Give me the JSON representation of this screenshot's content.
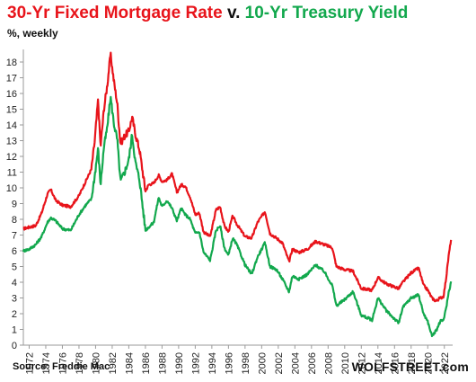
{
  "title": {
    "part1": "30-Yr Fixed Mortgage Rate",
    "part2": " v. ",
    "part3": "10-Yr Treasury Yield"
  },
  "subtitle": "%, weekly",
  "source": "Source: Freddie Mac",
  "brand": "WOLFSTREET.com",
  "colors": {
    "mortgage": "#e8141b",
    "treasury": "#12a84d",
    "axis": "#9a9a9a",
    "grid": "#d9d9d9"
  },
  "chart_data": {
    "type": "line",
    "title": "30-Yr Fixed Mortgage Rate v. 10-Yr Treasury Yield",
    "ylabel": "%, weekly",
    "xlim": [
      1971.3,
      2023.0
    ],
    "ylim": [
      0,
      18.8
    ],
    "y_ticks": [
      0,
      1,
      2,
      3,
      4,
      5,
      6,
      7,
      8,
      9,
      10,
      11,
      12,
      13,
      14,
      15,
      16,
      17,
      18
    ],
    "x_ticks": [
      1972,
      1974,
      1976,
      1978,
      1980,
      1982,
      1984,
      1986,
      1988,
      1990,
      1992,
      1994,
      1996,
      1998,
      2000,
      2002,
      2004,
      2006,
      2008,
      2010,
      2012,
      2014,
      2016,
      2018,
      2020,
      2022
    ],
    "grid": false,
    "series": [
      {
        "name": "30-Yr Fixed Mortgage Rate",
        "color": "#e8141b",
        "x": [
          1971.3,
          1972,
          1972.8,
          1973.5,
          1974.2,
          1974.6,
          1975.2,
          1976,
          1977,
          1978,
          1978.8,
          1979.5,
          1979.9,
          1980.3,
          1980.6,
          1981,
          1981.4,
          1981.8,
          1982.2,
          1982.6,
          1983,
          1983.5,
          1984,
          1984.4,
          1984.8,
          1985.3,
          1986,
          1986.4,
          1987,
          1987.6,
          1988,
          1988.6,
          1989.2,
          1989.8,
          1990.3,
          1990.8,
          1991.4,
          1992,
          1992.5,
          1993,
          1993.8,
          1994.5,
          1995,
          1995.5,
          1996,
          1996.5,
          1997,
          1998,
          1998.8,
          1999.5,
          2000.4,
          2001,
          2001.8,
          2002.5,
          2003.3,
          2003.7,
          2004.5,
          2005.5,
          2006.5,
          2007.5,
          2008.5,
          2009,
          2010,
          2011,
          2012,
          2013.3,
          2014,
          2015,
          2016.5,
          2017,
          2018,
          2018.9,
          2019.5,
          2020,
          2020.5,
          2021,
          2021.5,
          2021.9,
          2022.2,
          2022.5,
          2022.8
        ],
        "values": [
          7.4,
          7.5,
          7.6,
          8.4,
          9.6,
          9.9,
          9.2,
          8.9,
          8.8,
          9.5,
          10.4,
          11.2,
          13,
          15.6,
          12.6,
          15,
          16.5,
          18.5,
          16.8,
          15.4,
          12.8,
          13.3,
          13.6,
          14.5,
          13.4,
          12.4,
          9.8,
          10.2,
          10.3,
          10.8,
          10.4,
          10.5,
          10.9,
          9.7,
          10.2,
          10.1,
          9.4,
          8.3,
          8.4,
          7.2,
          6.9,
          8.6,
          8.8,
          7.6,
          7.2,
          8.2,
          7.7,
          6.9,
          6.8,
          7.8,
          8.5,
          7.1,
          6.8,
          6.5,
          5.3,
          6.1,
          5.9,
          6.1,
          6.6,
          6.4,
          6.2,
          5,
          4.8,
          4.7,
          3.6,
          3.5,
          4.3,
          3.9,
          3.6,
          4,
          4.6,
          4.9,
          3.8,
          3.5,
          3,
          2.8,
          3,
          3.1,
          4.2,
          5.6,
          6.7
        ]
      },
      {
        "name": "10-Yr Treasury Yield",
        "color": "#12a84d",
        "x": [
          1971.3,
          1972,
          1972.8,
          1973.5,
          1974.2,
          1974.6,
          1975.2,
          1976,
          1977,
          1978,
          1978.8,
          1979.5,
          1979.9,
          1980.3,
          1980.6,
          1981,
          1981.4,
          1981.8,
          1982.2,
          1982.6,
          1983,
          1983.5,
          1984,
          1984.4,
          1984.8,
          1985.3,
          1986,
          1986.4,
          1987,
          1987.6,
          1988,
          1988.6,
          1989.2,
          1989.8,
          1990.3,
          1990.8,
          1991.4,
          1992,
          1992.5,
          1993,
          1993.8,
          1994.5,
          1995,
          1995.5,
          1996,
          1996.5,
          1997,
          1998,
          1998.8,
          1999.5,
          2000.4,
          2001,
          2001.8,
          2002.5,
          2003.3,
          2003.7,
          2004.5,
          2005.5,
          2006.5,
          2007.5,
          2008.5,
          2009,
          2010,
          2011,
          2012,
          2013.3,
          2014,
          2015,
          2016.5,
          2017,
          2018,
          2018.9,
          2019.5,
          2020,
          2020.5,
          2021,
          2021.5,
          2021.9,
          2022.2,
          2022.5,
          2022.8
        ],
        "values": [
          6,
          6.1,
          6.4,
          6.9,
          7.8,
          8.1,
          7.9,
          7.4,
          7.3,
          8.3,
          8.9,
          9.3,
          10.8,
          12.5,
          10.2,
          12.6,
          13.8,
          15.8,
          14.1,
          13.1,
          10.4,
          11,
          11.8,
          13.4,
          11.6,
          10.5,
          7.3,
          7.5,
          7.8,
          9.4,
          8.8,
          9.2,
          8.7,
          7.9,
          8.7,
          8.3,
          8,
          7.1,
          7.2,
          5.9,
          5.4,
          7.3,
          7.6,
          6.2,
          5.7,
          6.8,
          6.4,
          5.1,
          4.5,
          5.6,
          6.5,
          5,
          4.8,
          4.2,
          3.4,
          4.4,
          4.2,
          4.5,
          5.1,
          4.7,
          3.8,
          2.5,
          2.9,
          3.4,
          1.9,
          1.6,
          3,
          2.2,
          1.4,
          2.4,
          3,
          3.2,
          2,
          1.5,
          0.6,
          0.9,
          1.5,
          1.6,
          2.3,
          3.3,
          4
        ]
      }
    ]
  }
}
